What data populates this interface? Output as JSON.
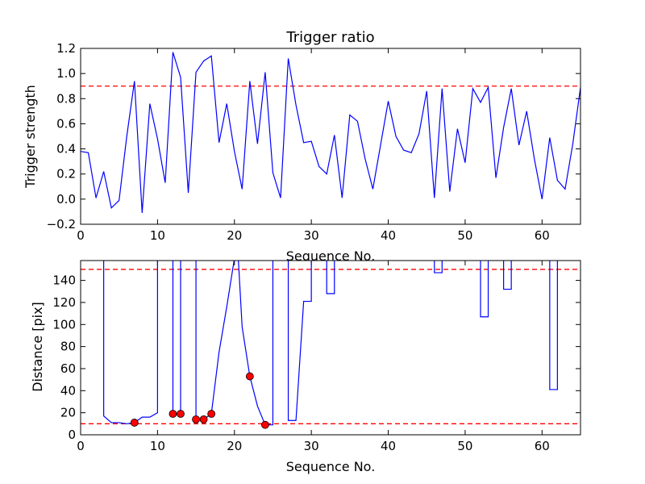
{
  "chart_data": [
    {
      "type": "line",
      "title": "Trigger ratio",
      "xlabel": "Sequence No.",
      "ylabel": "Trigger strength",
      "xlim": [
        0,
        65
      ],
      "ylim": [
        -0.2,
        1.2
      ],
      "xticks": [
        0,
        10,
        20,
        30,
        40,
        50,
        60
      ],
      "yticks": [
        -0.2,
        0.0,
        0.2,
        0.4,
        0.6,
        0.8,
        1.0,
        1.2
      ],
      "line_color": "#0000ff",
      "threshold": {
        "value": 0.9,
        "color": "#ff0000",
        "style": "dashed"
      },
      "x": [
        0,
        1,
        2,
        3,
        4,
        5,
        6,
        7,
        8,
        9,
        10,
        11,
        12,
        13,
        14,
        15,
        16,
        17,
        18,
        19,
        20,
        21,
        22,
        23,
        24,
        25,
        26,
        27,
        28,
        29,
        30,
        31,
        32,
        33,
        34,
        35,
        36,
        37,
        38,
        39,
        40,
        41,
        42,
        43,
        44,
        45,
        46,
        47,
        48,
        49,
        50,
        51,
        52,
        53,
        54,
        55,
        56,
        57,
        58,
        59,
        60,
        61,
        62,
        63,
        64,
        65
      ],
      "y": [
        0.38,
        0.37,
        0.01,
        0.22,
        -0.07,
        -0.01,
        0.5,
        0.94,
        -0.11,
        0.76,
        0.48,
        0.13,
        1.17,
        0.97,
        0.05,
        1.01,
        1.1,
        1.14,
        0.45,
        0.76,
        0.38,
        0.08,
        0.94,
        0.44,
        1.01,
        0.21,
        0.01,
        1.12,
        0.75,
        0.45,
        0.46,
        0.26,
        0.2,
        0.51,
        0.01,
        0.67,
        0.62,
        0.32,
        0.08,
        0.43,
        0.78,
        0.5,
        0.39,
        0.37,
        0.52,
        0.86,
        0.01,
        0.88,
        0.06,
        0.56,
        0.29,
        0.88,
        0.77,
        0.89,
        0.17,
        0.57,
        0.88,
        0.43,
        0.7,
        0.32,
        0.0,
        0.49,
        0.15,
        0.08,
        0.44,
        0.89
      ]
    },
    {
      "type": "line",
      "title": "",
      "xlabel": "Sequence No.",
      "ylabel": "Distance [pix]",
      "xlim": [
        0,
        65
      ],
      "ylim": [
        0,
        158
      ],
      "xticks": [
        0,
        10,
        20,
        30,
        40,
        50,
        60
      ],
      "yticks": [
        0,
        20,
        40,
        60,
        80,
        100,
        120,
        140
      ],
      "line_color": "#0000ff",
      "thresholds": [
        {
          "value": 150,
          "color": "#ff0000",
          "style": "dashed"
        },
        {
          "value": 10,
          "color": "#ff0000",
          "style": "dashed"
        }
      ],
      "x": [
        3,
        3,
        4,
        5,
        6,
        7,
        8,
        9,
        10,
        10,
        12,
        12,
        13,
        13,
        15,
        15,
        16,
        17,
        18,
        19,
        20,
        20.5,
        21,
        22,
        23,
        24,
        25,
        25,
        27,
        27,
        28,
        29,
        30,
        30,
        32,
        32,
        33,
        33,
        46,
        46,
        47,
        47,
        52,
        52,
        53,
        53,
        55,
        55,
        56,
        56,
        61,
        61,
        62,
        62
      ],
      "y": [
        160,
        17,
        11,
        11,
        10,
        11,
        16,
        16,
        20,
        160,
        160,
        19,
        19,
        160,
        160,
        14,
        14,
        19,
        75,
        116,
        160,
        160,
        98,
        53,
        26,
        9,
        9,
        160,
        160,
        13,
        13,
        121,
        121,
        160,
        160,
        128,
        128,
        160,
        160,
        147,
        147,
        160,
        160,
        107,
        107,
        160,
        160,
        132,
        132,
        160,
        160,
        41,
        41,
        160
      ],
      "markers": {
        "color": "#ff0000",
        "x": [
          7,
          12,
          13,
          15,
          16,
          17,
          22,
          24
        ],
        "y": [
          11,
          19,
          19,
          14,
          14,
          19,
          53,
          9
        ]
      }
    }
  ]
}
